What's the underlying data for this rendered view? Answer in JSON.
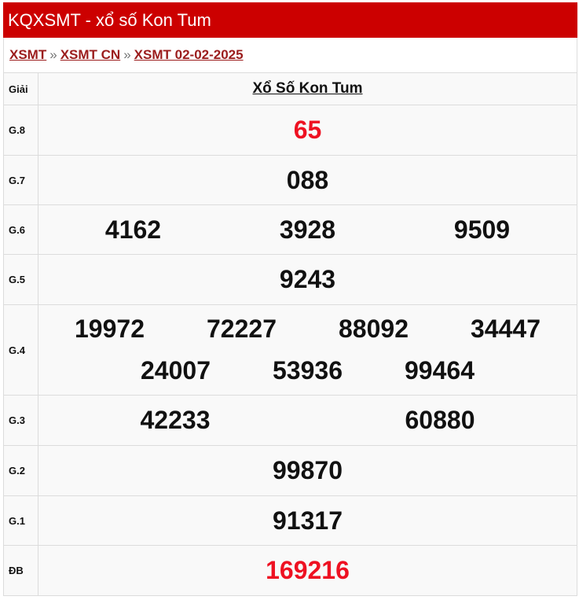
{
  "header": {
    "title": "KQXSMT - xổ số Kon Tum"
  },
  "breadcrumb": [
    {
      "label": "XSMT"
    },
    {
      "label": "XSMT CN"
    },
    {
      "label": "XSMT 02-02-2025"
    }
  ],
  "breadcrumb_separator": "»",
  "table": {
    "col_prize": "Giải",
    "col_province": "Xổ Số Kon Tum",
    "rows": [
      {
        "label": "G.8",
        "numbers": [
          "65"
        ]
      },
      {
        "label": "G.7",
        "numbers": [
          "088"
        ]
      },
      {
        "label": "G.6",
        "numbers": [
          "4162",
          "3928",
          "9509"
        ]
      },
      {
        "label": "G.5",
        "numbers": [
          "9243"
        ]
      },
      {
        "label": "G.4",
        "numbers": [
          "19972",
          "72227",
          "88092",
          "34447",
          "24007",
          "53936",
          "99464"
        ]
      },
      {
        "label": "G.3",
        "numbers": [
          "42233",
          "60880"
        ]
      },
      {
        "label": "G.2",
        "numbers": [
          "99870"
        ]
      },
      {
        "label": "G.1",
        "numbers": [
          "91317"
        ]
      },
      {
        "label": "ĐB",
        "numbers": [
          "169216"
        ]
      }
    ]
  },
  "colors": {
    "header_bg": "#cc0000",
    "link": "#9b1c1c",
    "highlight": "#ee1122"
  }
}
